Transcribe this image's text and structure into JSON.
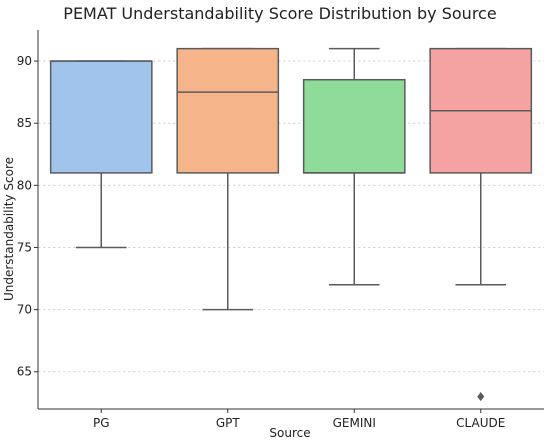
{
  "chart_data": {
    "type": "box",
    "title": "PEMAT Understandability Score Distribution by Source",
    "xlabel": "Source",
    "ylabel": "Understandability Score",
    "ylim": [
      62,
      92.5
    ],
    "yticks": [
      65,
      70,
      75,
      80,
      85,
      90
    ],
    "grid": "horizontal-dashed",
    "categories": [
      "PG",
      "GPT",
      "GEMINI",
      "CLAUDE"
    ],
    "boxes": [
      {
        "name": "PG",
        "whisker_low": 75,
        "q1": 81,
        "median": 90,
        "q3": 90,
        "whisker_high": 90,
        "outliers": [],
        "color": "#a1c4ec"
      },
      {
        "name": "GPT",
        "whisker_low": 70,
        "q1": 81,
        "median": 87.5,
        "q3": 91,
        "whisker_high": 91,
        "outliers": [],
        "color": "#f5b48a"
      },
      {
        "name": "GEMINI",
        "whisker_low": 72,
        "q1": 81,
        "median": 81,
        "q3": 88.5,
        "whisker_high": 91,
        "outliers": [],
        "color": "#8fdc9a"
      },
      {
        "name": "CLAUDE",
        "whisker_low": 72,
        "q1": 81,
        "median": 86,
        "q3": 91,
        "whisker_high": 91,
        "outliers": [
          63
        ],
        "color": "#f4a2a2"
      }
    ]
  }
}
